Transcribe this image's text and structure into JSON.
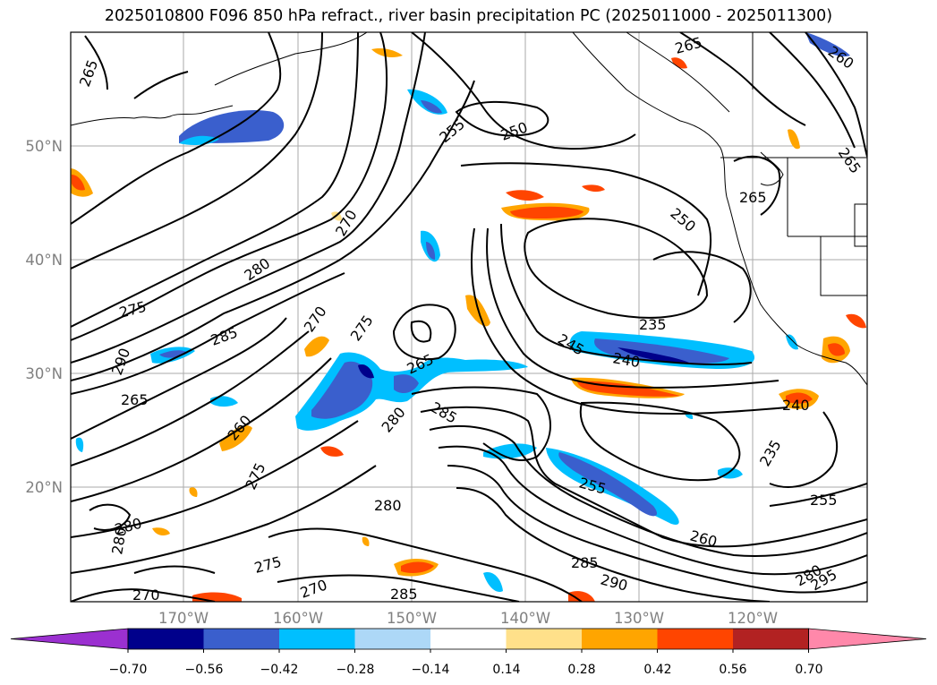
{
  "title": "2025010800 F096 850 hPa refract., river basin precipitation PC (2025011000 - 2025011300)",
  "map": {
    "lat_labels": [
      "50°N",
      "40°N",
      "30°N",
      "20°N"
    ],
    "lon_labels": [
      "170°W",
      "160°W",
      "150°W",
      "140°W",
      "130°W",
      "120°W"
    ],
    "gridlines": true,
    "contour_labels": [
      {
        "text": "265"
      },
      {
        "text": "250"
      },
      {
        "text": "255"
      },
      {
        "text": "265"
      },
      {
        "text": "260"
      },
      {
        "text": "265"
      },
      {
        "text": "265"
      },
      {
        "text": "250"
      },
      {
        "text": "270"
      },
      {
        "text": "280"
      },
      {
        "text": "275"
      },
      {
        "text": "270"
      },
      {
        "text": "275"
      },
      {
        "text": "285"
      },
      {
        "text": "290"
      },
      {
        "text": "265"
      },
      {
        "text": "235"
      },
      {
        "text": "245"
      },
      {
        "text": "240"
      },
      {
        "text": "265"
      },
      {
        "text": "285"
      },
      {
        "text": "280"
      },
      {
        "text": "240"
      },
      {
        "text": "260"
      },
      {
        "text": "275"
      },
      {
        "text": "235"
      },
      {
        "text": "255"
      },
      {
        "text": "280"
      },
      {
        "text": "255"
      },
      {
        "text": "280"
      },
      {
        "text": "280"
      },
      {
        "text": "260"
      },
      {
        "text": "275"
      },
      {
        "text": "285"
      },
      {
        "text": "270"
      },
      {
        "text": "290"
      },
      {
        "text": "270"
      },
      {
        "text": "285"
      },
      {
        "text": "295"
      },
      {
        "text": "280"
      }
    ]
  },
  "colorbar": {
    "colors": [
      "#9b30d0",
      "#00008b",
      "#3a5fcd",
      "#00bfff",
      "#add8f7",
      "#ffffff",
      "#ffe08a",
      "#ffa500",
      "#ff4500",
      "#b22222",
      "#ff88aa"
    ],
    "labels": [
      "−0.70",
      "−0.56",
      "−0.42",
      "−0.28",
      "−0.14",
      "0.14",
      "0.28",
      "0.42",
      "0.56",
      "0.70"
    ],
    "extend": "both"
  }
}
